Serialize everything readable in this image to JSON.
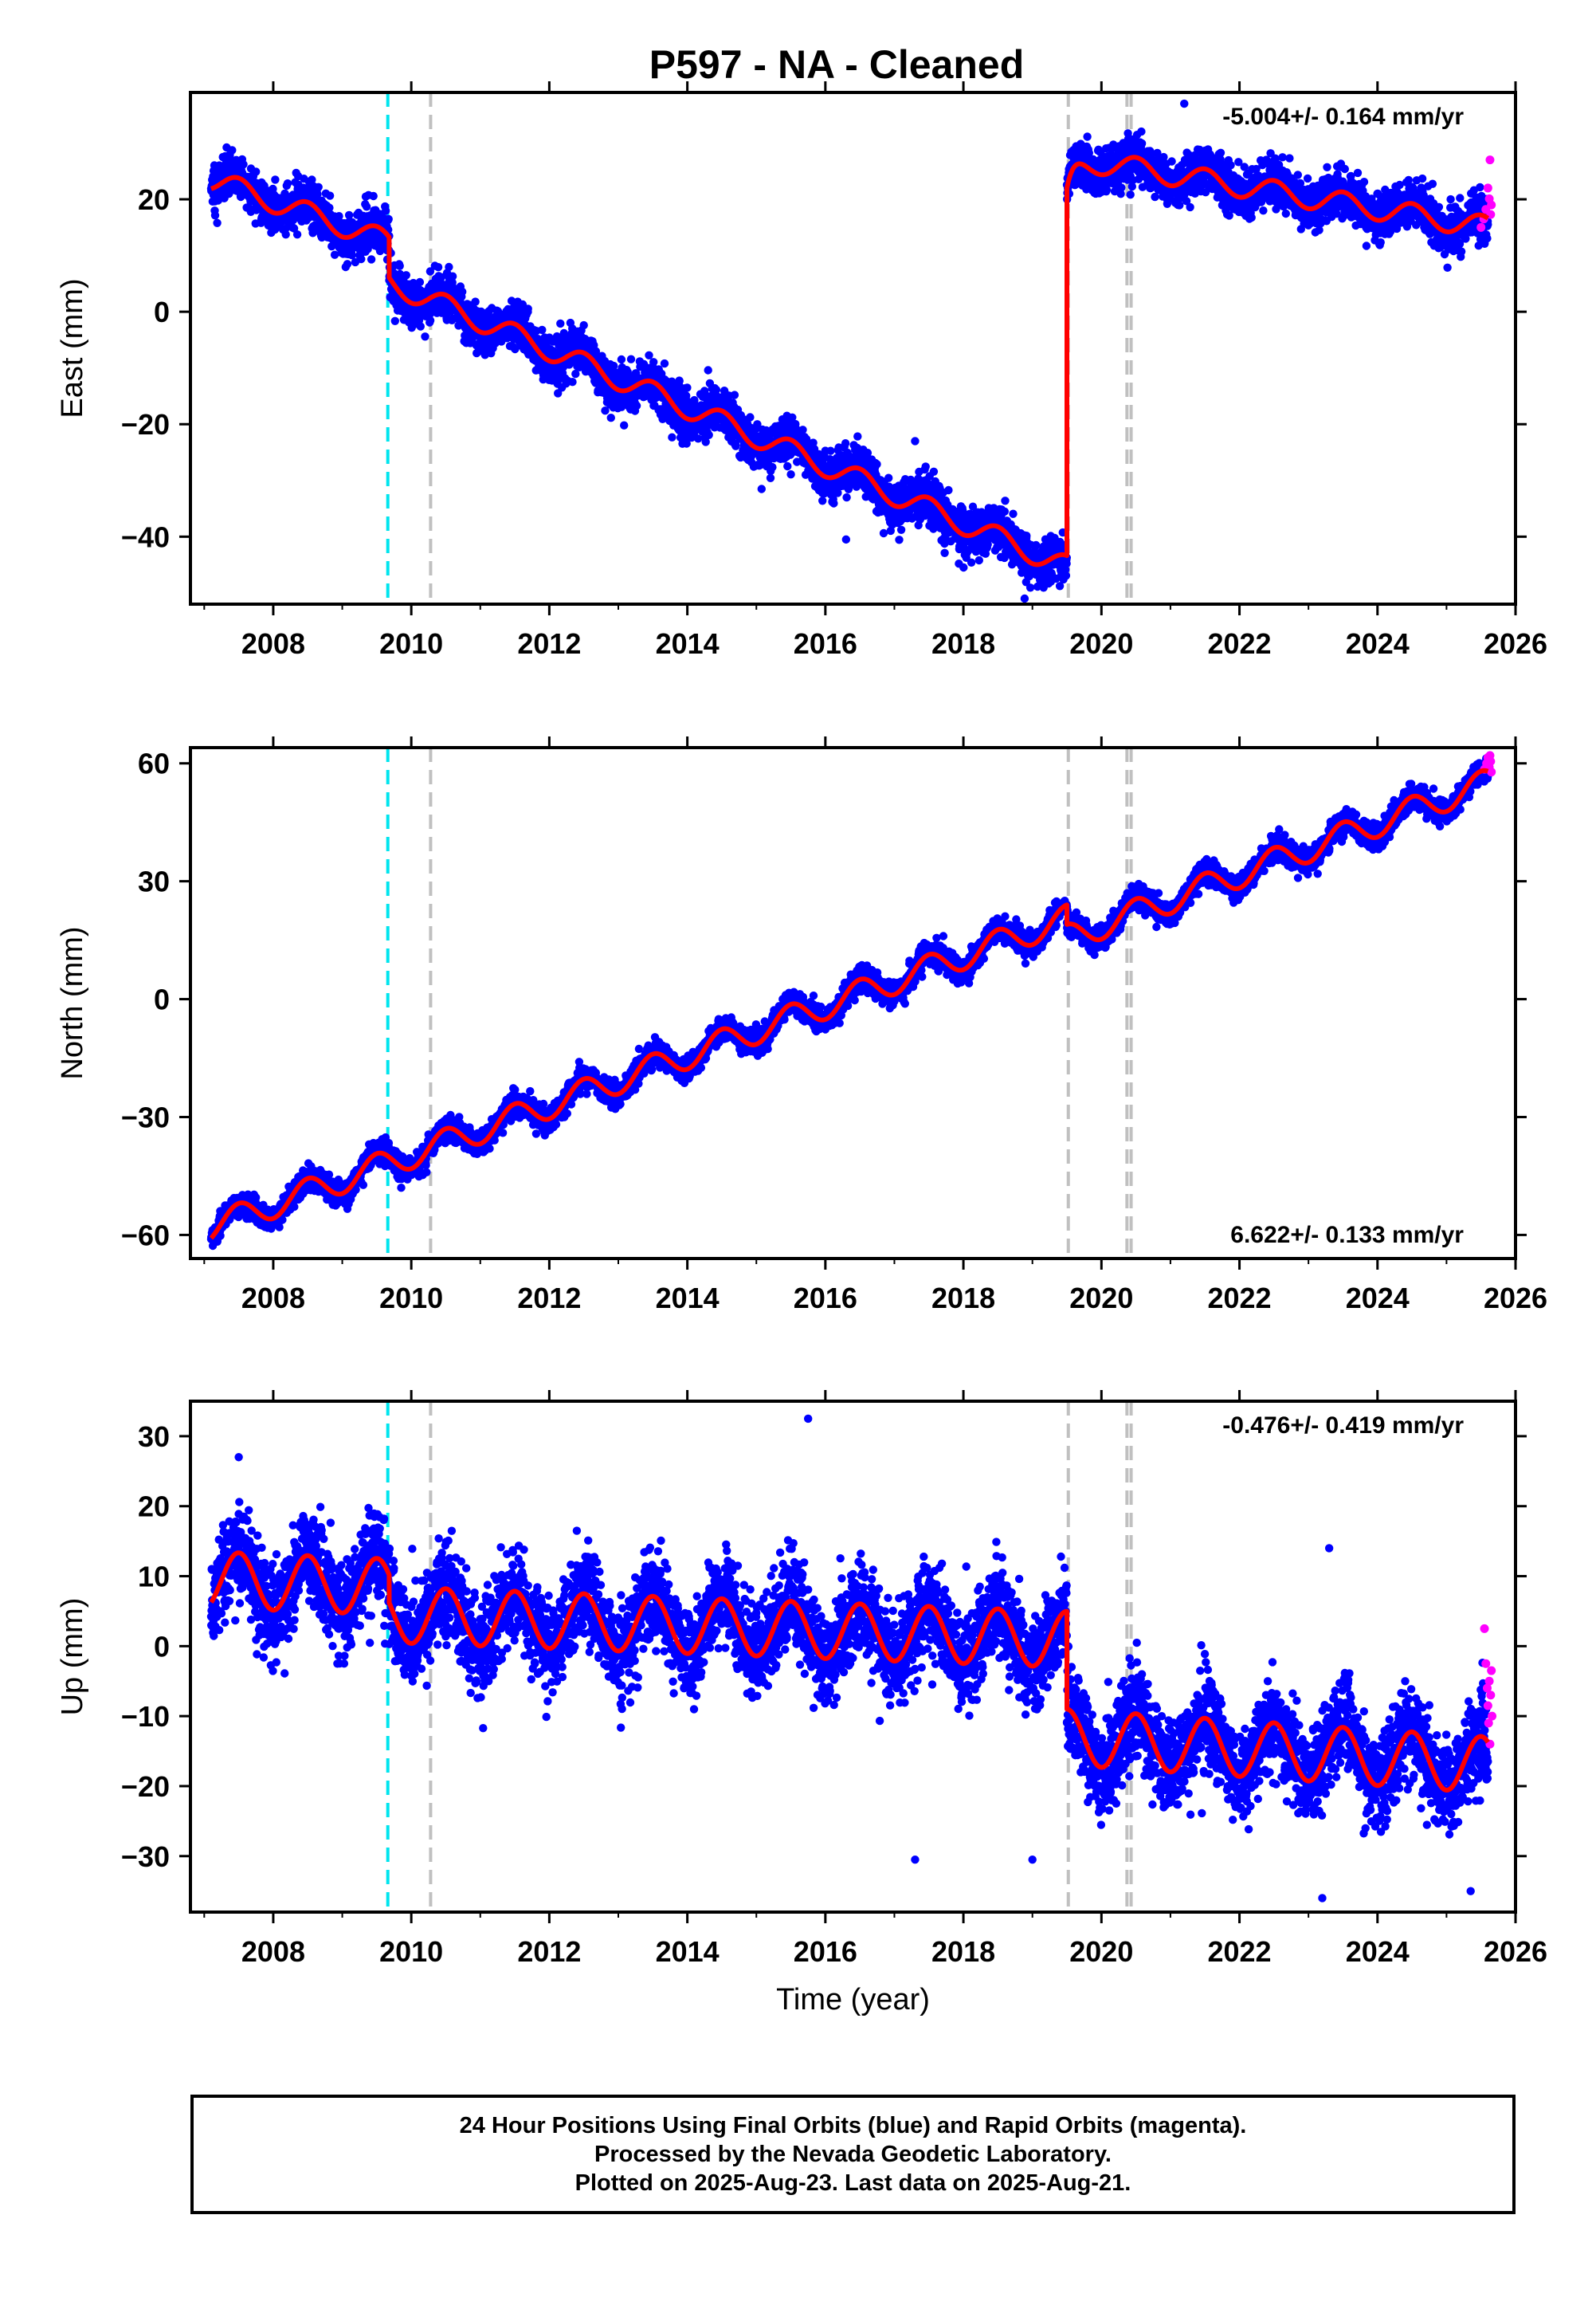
{
  "figure": {
    "title": "P597  - NA - Cleaned",
    "footer": [
      "24 Hour Positions Using Final Orbits (blue) and Rapid Orbits (magenta).",
      "Processed by the Nevada Geodetic Laboratory.",
      "Plotted on 2025-Aug-23. Last data on 2025-Aug-21."
    ],
    "colors": {
      "final_orbits": "#0000ff",
      "rapid_orbits": "#ff00ff",
      "model_fit": "#ff0000",
      "equipment_change": "#00e5ee",
      "other_event": "#c0c0c0"
    }
  },
  "chart_data": [
    {
      "type": "scatter",
      "component": "east",
      "ylabel": "East (mm)",
      "xlabel": "",
      "rate_label": "-5.004+/- 0.164 mm/yr",
      "rate_label_position": "top-right",
      "xlim": [
        2006.8,
        2026.0
      ],
      "ylim": [
        -52,
        39
      ],
      "xticks": [
        2008,
        2010,
        2012,
        2014,
        2016,
        2018,
        2020,
        2022,
        2024,
        2026
      ],
      "yticks": [
        -40,
        -20,
        0,
        20
      ],
      "trend_segments": [
        {
          "x": [
            2007.1,
            2009.68
          ],
          "y": [
            23.5,
            12.4
          ],
          "rate": -4.3
        },
        {
          "x": [
            2009.68,
            2019.5
          ],
          "y": [
            5.2,
            -45.4
          ],
          "rate": -5.15
        },
        {
          "x": [
            2019.5,
            2025.6
          ],
          "y": [
            27.5,
            15.0
          ],
          "rate": -2.05,
          "postseismic": {
            "amplitude": -7.5,
            "tau": 0.12
          }
        }
      ],
      "seasonal_amplitude": 2.0,
      "scatter_sigma": 2.0,
      "outliers": [
        {
          "x": 2010.6,
          "y": 6.3
        },
        {
          "x": 2017.3,
          "y": -23.0
        },
        {
          "x": 2016.3,
          "y": -40.5
        },
        {
          "x": 2021.2,
          "y": 37.0
        }
      ],
      "rapid_points": {
        "x": [
          2025.5,
          2025.54,
          2025.57,
          2025.6,
          2025.62,
          2025.63,
          2025.64,
          2025.65
        ],
        "y": [
          15.0,
          16.5,
          18.2,
          22.0,
          20.1,
          27.0,
          17.3,
          19.0
        ]
      },
      "events": [
        {
          "x": 2009.66,
          "kind": "equipment"
        },
        {
          "x": 2010.28,
          "kind": "other"
        },
        {
          "x": 2019.52,
          "kind": "other"
        },
        {
          "x": 2020.37,
          "kind": "other"
        },
        {
          "x": 2020.43,
          "kind": "other"
        }
      ]
    },
    {
      "type": "scatter",
      "component": "north",
      "ylabel": "North (mm)",
      "xlabel": "",
      "rate_label": "6.622+/- 0.133 mm/yr",
      "rate_label_position": "bottom-right",
      "xlim": [
        2006.8,
        2026.0
      ],
      "ylim": [
        -66,
        64
      ],
      "xticks": [
        2008,
        2010,
        2012,
        2014,
        2016,
        2018,
        2020,
        2022,
        2024,
        2026
      ],
      "yticks": [
        -60,
        -30,
        0,
        30,
        60
      ],
      "trend_segments": [
        {
          "x": [
            2007.1,
            2019.5
          ],
          "y": [
            -58.0,
            20.5
          ],
          "rate": 6.33
        },
        {
          "x": [
            2019.5,
            2025.6
          ],
          "y": [
            15.5,
            55.0
          ],
          "rate": 6.5
        }
      ],
      "seasonal_amplitude": 3.5,
      "scatter_sigma": 1.5,
      "outliers": [],
      "rapid_points": {
        "x": [
          2025.55,
          2025.58,
          2025.6,
          2025.62,
          2025.63,
          2025.64,
          2025.65
        ],
        "y": [
          58.5,
          60.0,
          61.5,
          59.0,
          62.0,
          60.5,
          57.8
        ]
      },
      "events": [
        {
          "x": 2009.66,
          "kind": "equipment"
        },
        {
          "x": 2010.28,
          "kind": "other"
        },
        {
          "x": 2019.52,
          "kind": "other"
        },
        {
          "x": 2020.37,
          "kind": "other"
        },
        {
          "x": 2020.43,
          "kind": "other"
        }
      ]
    },
    {
      "type": "scatter",
      "component": "up",
      "ylabel": "Up (mm)",
      "xlabel": "Time (year)",
      "rate_label": "-0.476+/- 0.419 mm/yr",
      "rate_label_position": "top-right",
      "xlim": [
        2006.8,
        2026.0
      ],
      "ylim": [
        -38,
        35
      ],
      "xticks": [
        2008,
        2010,
        2012,
        2014,
        2016,
        2018,
        2020,
        2022,
        2024,
        2026
      ],
      "yticks": [
        -30,
        -20,
        -10,
        0,
        10,
        20,
        30
      ],
      "trend_segments": [
        {
          "x": [
            2007.1,
            2009.68
          ],
          "y": [
            9.5,
            8.5
          ],
          "rate": -0.4
        },
        {
          "x": [
            2009.68,
            2019.5
          ],
          "y": [
            4.5,
            1.0
          ],
          "rate": -0.36
        },
        {
          "x": [
            2019.5,
            2025.6
          ],
          "y": [
            -13.0,
            -17.0
          ],
          "rate": -0.65
        }
      ],
      "seasonal_amplitude": 4.0,
      "scatter_sigma": 3.3,
      "outliers": [
        {
          "x": 2015.75,
          "y": 32.5
        },
        {
          "x": 2017.3,
          "y": -30.5
        },
        {
          "x": 2023.3,
          "y": 14.0
        },
        {
          "x": 2019.0,
          "y": -30.5
        },
        {
          "x": 2023.2,
          "y": -36.0
        },
        {
          "x": 2025.35,
          "y": -35.0
        },
        {
          "x": 2007.5,
          "y": 27.0
        }
      ],
      "rapid_points": {
        "x": [
          2025.55,
          2025.57,
          2025.59,
          2025.6,
          2025.61,
          2025.62,
          2025.63,
          2025.64,
          2025.65,
          2025.66
        ],
        "y": [
          2.5,
          -2.5,
          -6.0,
          -8.5,
          -11.0,
          -5.0,
          -14.0,
          -7.0,
          -3.5,
          -10.0
        ]
      },
      "events": [
        {
          "x": 2009.66,
          "kind": "equipment"
        },
        {
          "x": 2010.28,
          "kind": "other"
        },
        {
          "x": 2019.52,
          "kind": "other"
        },
        {
          "x": 2020.37,
          "kind": "other"
        },
        {
          "x": 2020.43,
          "kind": "other"
        }
      ]
    }
  ]
}
